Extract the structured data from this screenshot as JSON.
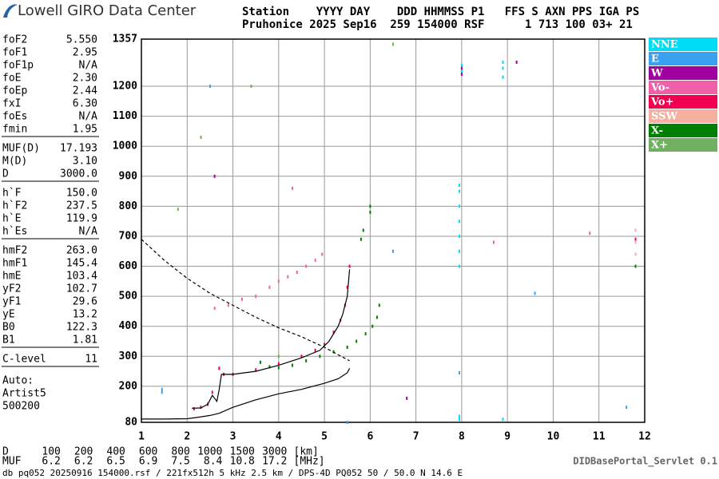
{
  "header": {
    "brand": "Lowell GIRO Data Center",
    "line1": "Station    YYYY DAY    DDD HHMMSS P1   FFS S AXN PPS IGA PS",
    "line2": "Pruhonice 2025 Sep16  259 154000 RSF      1 713 100 03+ 21"
  },
  "parameter_groups": [
    [
      {
        "name": "foF2",
        "value": "5.550"
      },
      {
        "name": "foF1",
        "value": "2.95"
      },
      {
        "name": "foF1p",
        "value": "N/A"
      },
      {
        "name": "foE",
        "value": "2.30"
      },
      {
        "name": "foEp",
        "value": "2.44"
      },
      {
        "name": "fxI",
        "value": "6.30"
      },
      {
        "name": "foEs",
        "value": "N/A"
      },
      {
        "name": "fmin",
        "value": "1.95"
      }
    ],
    [
      {
        "name": "MUF(D)",
        "value": "17.193"
      },
      {
        "name": "M(D)",
        "value": "3.10"
      },
      {
        "name": "D",
        "value": "3000.0"
      }
    ],
    [
      {
        "name": "h`F",
        "value": "150.0"
      },
      {
        "name": "h`F2",
        "value": "237.5"
      },
      {
        "name": "h`E",
        "value": "119.9"
      },
      {
        "name": "h`Es",
        "value": "N/A"
      }
    ],
    [
      {
        "name": "hmF2",
        "value": "263.0"
      },
      {
        "name": "hmF1",
        "value": "145.4"
      },
      {
        "name": "hmE",
        "value": "103.4"
      },
      {
        "name": "yF2",
        "value": "102.7"
      },
      {
        "name": "yF1",
        "value": "29.6"
      },
      {
        "name": "yE",
        "value": "13.2"
      },
      {
        "name": "B0",
        "value": "122.3"
      },
      {
        "name": "B1",
        "value": "1.81"
      }
    ],
    [
      {
        "name": "C-level",
        "value": "11"
      }
    ]
  ],
  "auto_lines": [
    "Auto:",
    "Artist5",
    "500200"
  ],
  "chart_data": {
    "type": "scatter",
    "xlim": [
      1,
      12
    ],
    "xticks": [
      1,
      2,
      3,
      4,
      5,
      6,
      7,
      8,
      9,
      10,
      11,
      12
    ],
    "ylim": [
      80,
      1357
    ],
    "yticks": [
      80,
      200,
      300,
      400,
      500,
      600,
      700,
      800,
      900,
      1000,
      1100,
      1200,
      1357
    ],
    "grid": true,
    "legend": "right",
    "series": [
      {
        "name": "NNE",
        "color": "#00dcf5",
        "x": [
          7.95,
          7.95,
          7.95,
          7.95,
          7.95,
          7.95,
          7.95,
          8.0,
          8.0,
          8.9,
          8.9,
          8.9,
          7.95,
          7.95,
          8.9
        ],
        "values": [
          600,
          650,
          700,
          750,
          800,
          850,
          870,
          1250,
          1270,
          1230,
          1260,
          1280,
          100,
          90,
          90
        ]
      },
      {
        "name": "E",
        "color": "#3aa0f0",
        "x": [
          1.45,
          1.45,
          2.5,
          7.95,
          5.5,
          11.6,
          6.5,
          9.6
        ],
        "values": [
          190,
          180,
          1200,
          245,
          80,
          130,
          650,
          510
        ]
      },
      {
        "name": "W",
        "color": "#a000a0",
        "x": [
          8.0,
          8.0,
          9.2,
          6.8,
          2.6
        ],
        "values": [
          1260,
          1240,
          1280,
          160,
          900
        ]
      },
      {
        "name": "Vo-",
        "color": "#f060a8",
        "x": [
          2.6,
          2.9,
          3.2,
          3.5,
          3.8,
          4.0,
          4.2,
          4.4,
          4.6,
          4.8,
          4.95,
          8.7,
          10.8,
          4.3
        ],
        "values": [
          460,
          470,
          490,
          500,
          530,
          550,
          565,
          580,
          600,
          620,
          640,
          680,
          710,
          860
        ]
      },
      {
        "name": "Vo+",
        "color": "#f00050",
        "x": [
          2.15,
          2.3,
          2.45,
          2.55,
          2.7,
          2.8,
          3.0,
          3.5,
          4.0,
          4.5,
          4.8,
          5.0,
          5.2,
          5.35,
          5.45,
          5.5,
          5.55,
          11.8
        ],
        "values": [
          125,
          130,
          140,
          180,
          260,
          240,
          240,
          255,
          275,
          300,
          320,
          340,
          380,
          420,
          470,
          530,
          600,
          690
        ]
      },
      {
        "name": "SSW",
        "color": "#f5b0a0",
        "x": [
          11.8,
          11.8,
          11.8
        ],
        "values": [
          640,
          680,
          720
        ]
      },
      {
        "name": "X-",
        "color": "#008000",
        "x": [
          3.6,
          3.8,
          4.0,
          4.3,
          4.6,
          4.9,
          5.2,
          5.5,
          5.7,
          5.9,
          6.05,
          6.15,
          6.2,
          5.8,
          5.85,
          6.0,
          6.0,
          11.8
        ],
        "values": [
          280,
          265,
          262,
          270,
          285,
          300,
          315,
          330,
          350,
          375,
          400,
          430,
          470,
          690,
          720,
          780,
          800,
          600
        ]
      },
      {
        "name": "X+",
        "color": "#70b060",
        "x": [
          4.0,
          2.3,
          1.8,
          6.5,
          3.4
        ],
        "values": [
          300,
          1030,
          790,
          1340,
          1200
        ]
      }
    ],
    "lines": [
      {
        "color": "#000000",
        "dash": false,
        "x": [
          2.1,
          2.3,
          2.45,
          2.55,
          2.65,
          2.7,
          2.75,
          3.0,
          3.5,
          4.0,
          4.5,
          4.9,
          5.1,
          5.3,
          5.4,
          5.5,
          5.55
        ],
        "y": [
          127,
          128,
          140,
          170,
          150,
          190,
          240,
          240,
          250,
          270,
          295,
          320,
          350,
          400,
          440,
          500,
          590
        ]
      },
      {
        "color": "#000000",
        "dash": false,
        "x": [
          1,
          1.5,
          2.0,
          2.2,
          2.5,
          2.7,
          3.0,
          3.5,
          4.0,
          4.5,
          5.0,
          5.3,
          5.5,
          5.55
        ],
        "y": [
          91,
          91,
          92,
          96,
          103,
          110,
          130,
          155,
          175,
          190,
          210,
          225,
          245,
          260
        ]
      },
      {
        "color": "#000000",
        "dash": true,
        "x": [
          1,
          1.5,
          2,
          2.5,
          3,
          3.5,
          4,
          4.5,
          5,
          5.3,
          5.55
        ],
        "y": [
          690,
          620,
          560,
          510,
          470,
          430,
          395,
          365,
          330,
          305,
          285
        ]
      }
    ]
  },
  "distance_table": {
    "d_label": "D",
    "distances": [
      100,
      200,
      400,
      600,
      800,
      1000,
      1500,
      3000
    ],
    "d_unit": "[km]",
    "muf_label": "MUF",
    "mufs": [
      6.2,
      6.2,
      6.5,
      6.9,
      7.5,
      8.4,
      10.8,
      17.2
    ],
    "muf_unit": "[MHz]"
  },
  "footer": {
    "servlet": "DIDBasePortal_Servlet 0.1",
    "file_info": "db pq052 20250916 154000.rsf / 221fx512h 5 kHz 2.5 km / DPS-4D PQ052 50 / 50.0 N 14.6 E"
  }
}
